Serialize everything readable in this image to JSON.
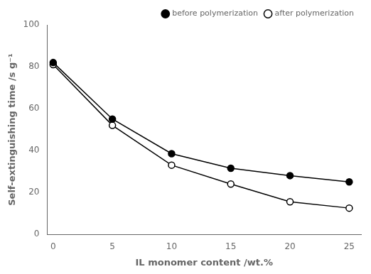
{
  "chart_data": {
    "type": "line",
    "xlabel": "IL monomer content /wt.%",
    "ylabel": "Self-extinguishing time /s g⁻¹",
    "x": [
      0,
      5,
      10,
      15,
      20,
      25
    ],
    "series": [
      {
        "name": "before polymerization",
        "color": "black",
        "marker": "circle",
        "line_style": "solid",
        "values": [
          82,
          55,
          38.5,
          31.5,
          28,
          25
        ]
      },
      {
        "name": "after polymerization",
        "color": "black",
        "marker": "circle-open",
        "line_style": "solid",
        "values": [
          81,
          52,
          33,
          24,
          15.5,
          12.5
        ]
      }
    ],
    "xlim": [
      -0.5,
      26
    ],
    "xticks": [
      0,
      5,
      10,
      15,
      20,
      25
    ],
    "ylim": [
      0,
      100
    ],
    "yticks": [
      0,
      20,
      40,
      60,
      80,
      100
    ],
    "grid": false,
    "legend": "upper right"
  }
}
